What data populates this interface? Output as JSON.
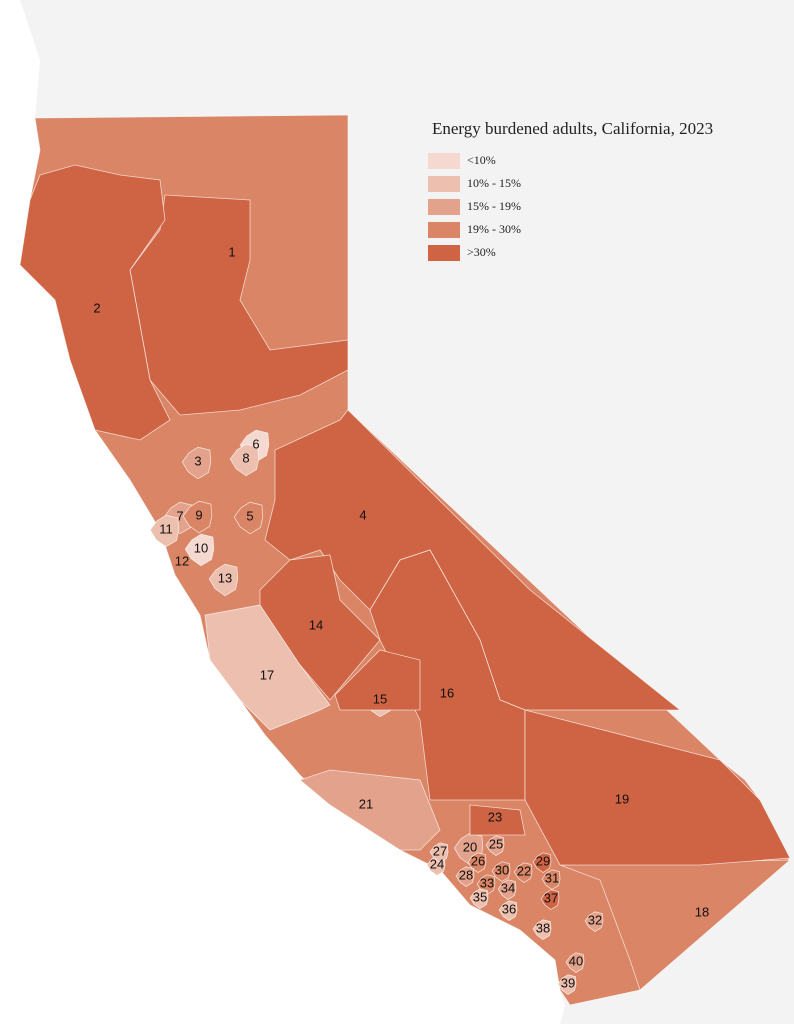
{
  "title": "Energy burdened adults, California, 2023",
  "legend": [
    {
      "label": "<10%",
      "color": "#f5d9d0"
    },
    {
      "label": "10% - 15%",
      "color": "#ecbfae"
    },
    {
      "label": "15% - 19%",
      "color": "#e3a28b"
    },
    {
      "label": "19% - 30%",
      "color": "#d98566"
    },
    {
      "label": ">30%",
      "color": "#cf6444"
    }
  ],
  "base_color": "#d98566",
  "regions": [
    {
      "label": "1",
      "color": "#cf6444"
    },
    {
      "label": "2",
      "color": "#cf6444"
    },
    {
      "label": "3",
      "color": "#e3a28b"
    },
    {
      "label": "4",
      "color": "#cf6444"
    },
    {
      "label": "5",
      "color": "#d98566"
    },
    {
      "label": "6",
      "color": "#f5d9d0"
    },
    {
      "label": "7",
      "color": "#e3a28b"
    },
    {
      "label": "8",
      "color": "#ecbfae"
    },
    {
      "label": "9",
      "color": "#d98566"
    },
    {
      "label": "10",
      "color": "#f5d9d0"
    },
    {
      "label": "11",
      "color": "#ecbfae"
    },
    {
      "label": "12",
      "color": "#cf6444"
    },
    {
      "label": "13",
      "color": "#ecbfae"
    },
    {
      "label": "14",
      "color": "#cf6444"
    },
    {
      "label": "15",
      "color": "#ecbfae"
    },
    {
      "label": "16",
      "color": "#cf6444"
    },
    {
      "label": "17",
      "color": "#ecbfae"
    },
    {
      "label": "18",
      "color": "#d98566"
    },
    {
      "label": "19",
      "color": "#cf6444"
    },
    {
      "label": "20",
      "color": "#e3a28b"
    },
    {
      "label": "21",
      "color": "#e3a28b"
    },
    {
      "label": "22",
      "color": "#d98566"
    },
    {
      "label": "23",
      "color": "#cf6444"
    },
    {
      "label": "24",
      "color": "#ecbfae"
    },
    {
      "label": "25",
      "color": "#e3a28b"
    },
    {
      "label": "26",
      "color": "#d98566"
    },
    {
      "label": "27",
      "color": "#ecbfae"
    },
    {
      "label": "28",
      "color": "#e3a28b"
    },
    {
      "label": "29",
      "color": "#cf6444"
    },
    {
      "label": "30",
      "color": "#d98566"
    },
    {
      "label": "31",
      "color": "#d98566"
    },
    {
      "label": "32",
      "color": "#e3a28b"
    },
    {
      "label": "33",
      "color": "#d98566"
    },
    {
      "label": "34",
      "color": "#e3a28b"
    },
    {
      "label": "35",
      "color": "#ecbfae"
    },
    {
      "label": "36",
      "color": "#ecbfae"
    },
    {
      "label": "37",
      "color": "#cf6444"
    },
    {
      "label": "38",
      "color": "#ecbfae"
    },
    {
      "label": "39",
      "color": "#ecbfae"
    },
    {
      "label": "40",
      "color": "#e3a28b"
    }
  ]
}
